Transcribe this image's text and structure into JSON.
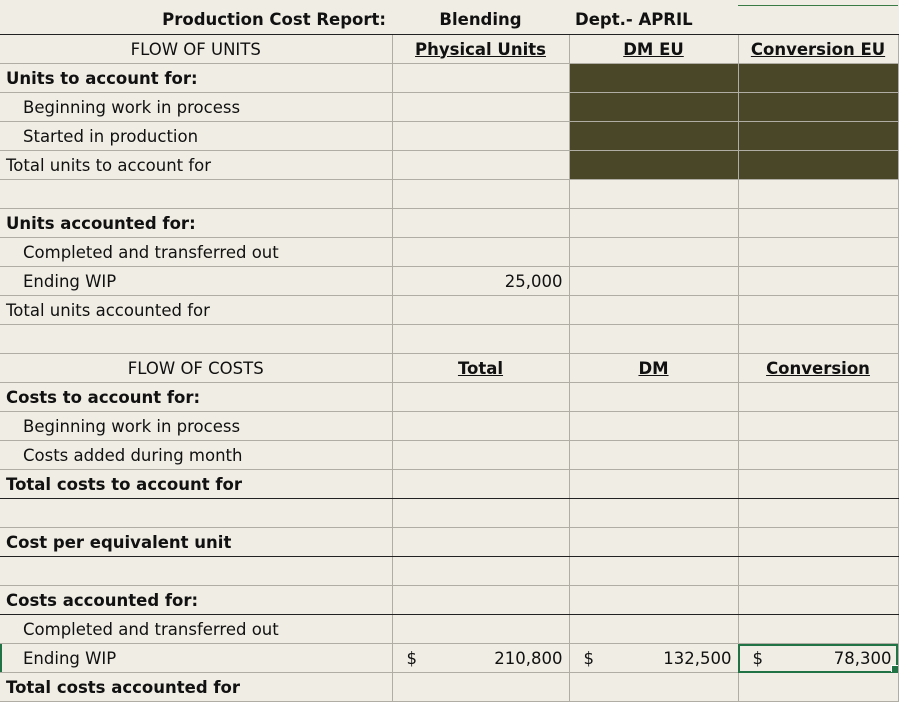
{
  "title": {
    "report": "Production Cost Report:",
    "dept": "Blending",
    "month": "Dept.- APRIL"
  },
  "units_header": {
    "label": "FLOW OF UNITS",
    "col1": "Physical Units",
    "col2": "DM EU",
    "col3": "Conversion EU"
  },
  "units_to_account": {
    "heading": "Units to account for:",
    "beginning_wip": "Beginning work in process",
    "started": "Started in production",
    "total": "Total  units to account for"
  },
  "units_accounted": {
    "heading": "Units accounted for:",
    "completed": "Completed and transferred out",
    "ending_wip": "Ending WIP",
    "ending_wip_physical": "25,000",
    "total": "Total  units accounted for"
  },
  "costs_header": {
    "label": "FLOW OF COSTS",
    "col1": "Total",
    "col2": "DM",
    "col3": "Conversion"
  },
  "costs_to_account": {
    "heading": "Costs to account for:",
    "beginning_wip": "Beginning work in process",
    "added": "Costs added during month",
    "total": "Total costs to account for"
  },
  "cost_per_eu": "Cost per equivalent unit",
  "costs_accounted": {
    "heading": "Costs accounted for:",
    "completed": "Completed and transferred out",
    "ending_wip": "Ending WIP",
    "currency": "$",
    "ending_wip_total": "210,800",
    "ending_wip_dm": "132,500",
    "ending_wip_conversion": "78,300",
    "total": "Total costs accounted for"
  }
}
